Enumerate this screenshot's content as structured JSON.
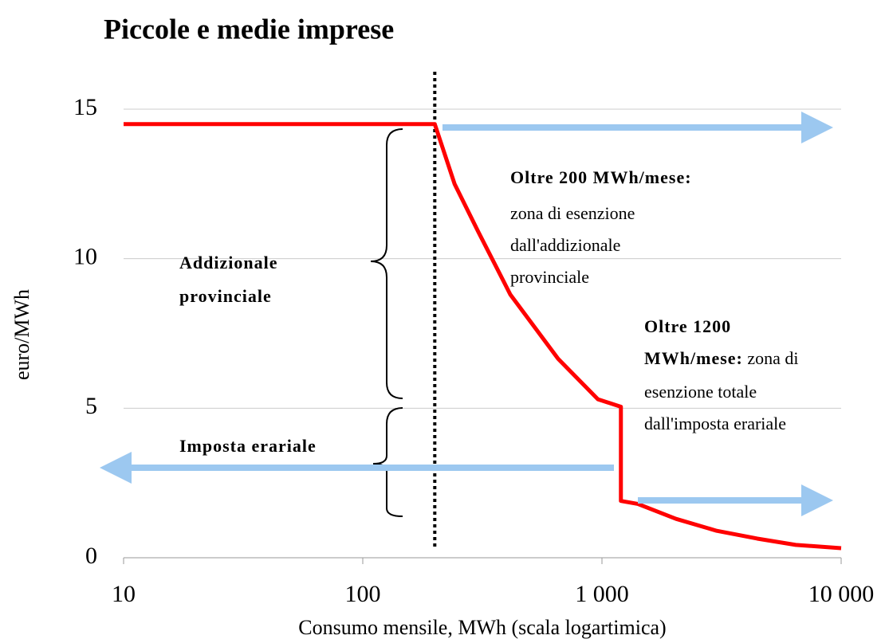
{
  "chart_data": {
    "type": "line",
    "title": "Piccole e medie imprese",
    "ylabel": "euro/MWh",
    "xlabel": "Consumo mensile, MWh (scala logartimica)",
    "xscale": "log",
    "x": [
      10,
      200,
      242,
      304,
      414,
      656,
      962,
      1200,
      1200,
      1412,
      2040,
      3020,
      4460,
      6460,
      10000
    ],
    "series": [
      {
        "name": "euro/MWh",
        "color": "#ff0000",
        "values": [
          14.5,
          14.5,
          12.5,
          10.9,
          8.8,
          6.65,
          5.3,
          5.05,
          1.9,
          1.8,
          1.3,
          0.9,
          0.64,
          0.43,
          0.32
        ]
      }
    ],
    "xlim": [
      10,
      10000
    ],
    "xticks": [
      10,
      100,
      {
        "value": 1000,
        "label": "1 000"
      },
      {
        "value": 10000,
        "label": "10 000"
      }
    ],
    "ylim": [
      0,
      15
    ],
    "yticks": [
      0,
      5,
      10,
      15
    ],
    "grid": true,
    "vline": 200,
    "annotations": [
      {
        "bold": [
          "Oltre 200 MWh/mese:"
        ],
        "text": [
          "zona di esenzione",
          "dall'addizionale",
          "provinciale"
        ]
      },
      {
        "bold": [
          "Oltre  1200",
          "MWh/mese:"
        ],
        "text": [
          "zona di",
          "esenzione totale",
          "dall'imposta erariale"
        ]
      },
      {
        "bold": [
          "Addizionale",
          "provinciale"
        ]
      },
      {
        "bold": [
          "Imposta erariale"
        ]
      }
    ]
  }
}
